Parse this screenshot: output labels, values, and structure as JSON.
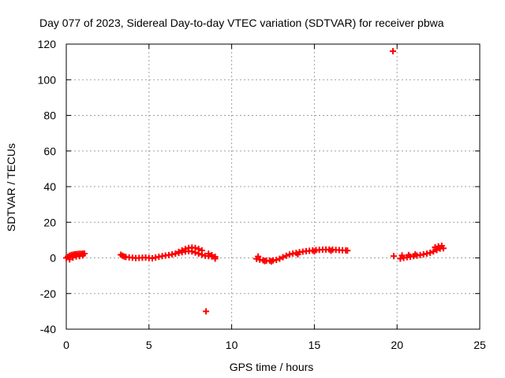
{
  "chart_data": {
    "type": "scatter",
    "title": "Day 077 of 2023, Sidereal Day-to-day VTEC variation (SDTVAR) for receiver pbwa",
    "xlabel": "GPS time / hours",
    "ylabel": "SDTVAR / TECUs",
    "xlim": [
      0,
      25
    ],
    "ylim": [
      -40,
      120
    ],
    "xticks": [
      0,
      5,
      10,
      15,
      20,
      25
    ],
    "yticks": [
      -40,
      -20,
      0,
      20,
      40,
      60,
      80,
      100,
      120
    ],
    "grid": true,
    "marker": "plus",
    "color": "#ff0000",
    "series": [
      {
        "name": "SDTVAR",
        "x": [
          0.0,
          0.1,
          0.2,
          0.3,
          0.4,
          0.5,
          0.6,
          0.7,
          0.8,
          0.9,
          1.0,
          1.1,
          0.2,
          0.4,
          0.6,
          0.8,
          1.0,
          3.3,
          3.4,
          3.5,
          3.6,
          3.8,
          4.0,
          4.2,
          4.4,
          4.6,
          4.8,
          5.0,
          5.2,
          5.4,
          5.6,
          5.8,
          6.0,
          6.2,
          6.4,
          6.6,
          6.8,
          7.0,
          7.2,
          7.4,
          7.6,
          7.8,
          8.0,
          8.2,
          8.4,
          8.6,
          8.8,
          9.0,
          7.2,
          7.4,
          7.6,
          7.8,
          8.0,
          8.2,
          7.0,
          6.8,
          8.6,
          8.8,
          9.0,
          8.45,
          11.5,
          11.7,
          11.9,
          12.1,
          12.3,
          12.5,
          12.7,
          12.9,
          13.1,
          13.3,
          13.5,
          13.7,
          13.9,
          14.1,
          14.3,
          14.5,
          14.7,
          14.9,
          15.1,
          15.3,
          15.5,
          15.7,
          15.9,
          16.1,
          16.3,
          16.5,
          16.7,
          16.9,
          17.0,
          11.6,
          12.0,
          12.4,
          14.0,
          15.0,
          16.0,
          19.75,
          19.8,
          20.2,
          20.4,
          20.6,
          20.8,
          21.0,
          21.2,
          21.4,
          21.6,
          21.8,
          22.0,
          22.2,
          22.4,
          22.6,
          22.8,
          20.3,
          20.7,
          21.1,
          22.3,
          22.5,
          22.7
        ],
        "y": [
          0.0,
          0.6,
          1.2,
          1.6,
          1.8,
          2.0,
          2.1,
          2.2,
          2.3,
          2.3,
          2.4,
          2.4,
          -0.8,
          0.2,
          0.8,
          1.0,
          1.4,
          1.8,
          1.2,
          0.8,
          0.5,
          0.3,
          0.1,
          -0.1,
          0.0,
          0.1,
          0.2,
          0.0,
          -0.2,
          0.2,
          0.6,
          1.0,
          1.3,
          1.6,
          2.0,
          2.4,
          2.8,
          3.2,
          3.6,
          3.8,
          3.6,
          3.0,
          2.4,
          1.8,
          1.2,
          1.0,
          0.8,
          0.6,
          5.0,
          5.6,
          5.8,
          5.6,
          5.0,
          4.2,
          4.2,
          3.4,
          2.4,
          1.6,
          -0.4,
          -30.0,
          -0.5,
          -1.0,
          -1.3,
          -1.5,
          -1.5,
          -1.4,
          -1.1,
          -0.5,
          0.4,
          1.2,
          1.9,
          2.4,
          2.8,
          3.2,
          3.5,
          3.8,
          4.0,
          4.2,
          4.4,
          4.5,
          4.6,
          4.7,
          4.7,
          4.6,
          4.5,
          4.4,
          4.3,
          4.2,
          4.1,
          0.8,
          -1.8,
          -2.0,
          2.0,
          3.6,
          4.0,
          116.0,
          1.0,
          -0.4,
          0.0,
          0.4,
          0.7,
          1.0,
          1.3,
          1.6,
          2.0,
          2.4,
          2.9,
          3.6,
          4.4,
          5.2,
          5.4,
          1.4,
          1.6,
          2.0,
          6.0,
          6.5,
          6.8
        ]
      }
    ]
  }
}
